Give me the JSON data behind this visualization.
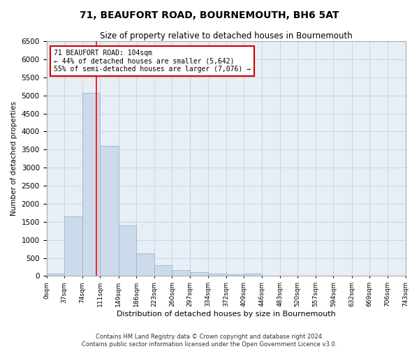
{
  "title": "71, BEAUFORT ROAD, BOURNEMOUTH, BH6 5AT",
  "subtitle": "Size of property relative to detached houses in Bournemouth",
  "xlabel": "Distribution of detached houses by size in Bournemouth",
  "ylabel": "Number of detached properties",
  "bin_edges": [
    0,
    37,
    74,
    111,
    149,
    186,
    223,
    260,
    297,
    334,
    372,
    409,
    446,
    483,
    520,
    557,
    594,
    632,
    669,
    706,
    743
  ],
  "bin_labels": [
    "0sqm",
    "37sqm",
    "74sqm",
    "111sqm",
    "149sqm",
    "186sqm",
    "223sqm",
    "260sqm",
    "297sqm",
    "334sqm",
    "372sqm",
    "409sqm",
    "446sqm",
    "483sqm",
    "520sqm",
    "557sqm",
    "594sqm",
    "632sqm",
    "669sqm",
    "706sqm",
    "743sqm"
  ],
  "bar_heights": [
    75,
    1650,
    5080,
    3600,
    1400,
    620,
    290,
    155,
    110,
    75,
    55,
    75,
    0,
    0,
    0,
    0,
    0,
    0,
    0,
    0
  ],
  "bar_color": "#ccdaeb",
  "bar_edge_color": "#8ab0cc",
  "grid_color": "#c8d0db",
  "red_line_x": 104,
  "annotation_line1": "71 BEAUFORT ROAD: 104sqm",
  "annotation_line2": "← 44% of detached houses are smaller (5,642)",
  "annotation_line3": "55% of semi-detached houses are larger (7,076) →",
  "annotation_box_color": "#ffffff",
  "annotation_box_edge": "#cc0000",
  "ylim": [
    0,
    6500
  ],
  "yticks": [
    0,
    500,
    1000,
    1500,
    2000,
    2500,
    3000,
    3500,
    4000,
    4500,
    5000,
    5500,
    6000,
    6500
  ],
  "footer1": "Contains HM Land Registry data © Crown copyright and database right 2024.",
  "footer2": "Contains public sector information licensed under the Open Government Licence v3.0."
}
